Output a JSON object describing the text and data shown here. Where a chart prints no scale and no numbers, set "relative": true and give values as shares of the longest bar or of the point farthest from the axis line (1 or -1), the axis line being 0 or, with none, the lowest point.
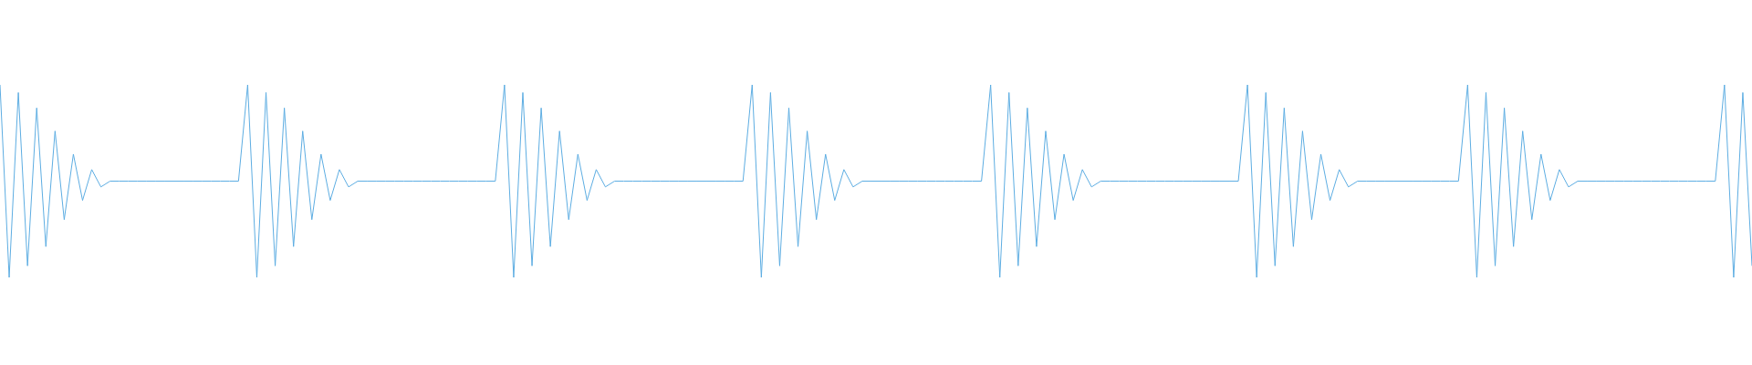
{
  "chart_data": {
    "type": "line",
    "relative": true,
    "legend": false,
    "marker": "none",
    "categories": [
      null,
      null,
      null,
      null,
      null,
      null,
      null,
      null,
      null,
      null,
      null,
      null,
      null,
      null,
      null,
      null,
      null,
      null,
      null,
      null,
      null,
      null,
      null,
      null,
      null,
      null,
      null,
      null,
      null,
      null,
      null,
      null,
      null,
      null,
      null,
      null,
      null,
      null,
      null,
      null,
      null,
      null,
      null,
      null,
      null,
      null,
      null,
      null,
      null,
      null,
      null,
      null,
      null,
      null,
      null,
      null,
      null,
      null,
      null,
      null,
      null,
      null,
      null,
      null,
      null,
      null,
      null,
      null,
      null,
      null,
      null,
      null,
      null,
      null,
      null,
      null,
      null,
      null,
      null,
      null,
      null,
      null,
      null,
      null,
      null,
      null,
      null,
      null,
      null,
      null,
      null,
      null,
      null,
      null,
      null,
      null,
      null,
      null,
      null,
      null,
      null,
      null,
      null,
      null,
      null,
      null,
      null,
      null,
      null,
      null,
      null,
      null,
      null,
      null,
      null,
      null,
      null,
      null,
      null,
      null,
      null,
      null,
      null,
      null,
      null,
      null,
      null,
      null,
      null,
      null,
      null,
      null,
      null,
      null,
      null,
      null,
      null,
      null,
      null,
      null,
      null,
      null,
      null,
      null,
      null,
      null,
      null,
      null,
      null,
      null,
      null,
      null,
      null,
      null,
      null,
      null,
      null,
      null,
      null,
      null,
      null,
      null,
      null,
      null,
      null,
      null,
      null,
      null,
      null,
      null,
      null,
      null,
      null,
      null,
      null,
      null,
      null,
      null,
      null,
      null,
      null,
      null,
      null,
      null,
      null,
      null,
      null,
      null,
      null,
      null,
      null,
      null
    ],
    "series": [
      {
        "color": "#5dade2",
        "values": [
          1,
          0,
          0.96,
          0.06,
          0.88,
          0.16,
          0.76,
          0.3,
          0.64,
          0.4,
          0.56,
          0.47,
          0.5,
          0.5,
          0.5,
          0.5,
          0.5,
          0.5,
          0.5,
          0.5,
          0.5,
          0.5,
          0.5,
          0.5,
          0.5,
          0.5,
          0.5,
          1,
          0,
          0.96,
          0.06,
          0.88,
          0.16,
          0.76,
          0.3,
          0.64,
          0.4,
          0.56,
          0.47,
          0.5,
          0.5,
          0.5,
          0.5,
          0.5,
          0.5,
          0.5,
          0.5,
          0.5,
          0.5,
          0.5,
          0.5,
          0.5,
          0.5,
          0.5,
          0.5,
          1,
          0,
          0.96,
          0.06,
          0.88,
          0.16,
          0.76,
          0.3,
          0.64,
          0.4,
          0.56,
          0.47,
          0.5,
          0.5,
          0.5,
          0.5,
          0.5,
          0.5,
          0.5,
          0.5,
          0.5,
          0.5,
          0.5,
          0.5,
          0.5,
          0.5,
          0.5,
          1,
          0,
          0.96,
          0.06,
          0.88,
          0.16,
          0.76,
          0.3,
          0.64,
          0.4,
          0.56,
          0.47,
          0.5,
          0.5,
          0.5,
          0.5,
          0.5,
          0.5,
          0.5,
          0.5,
          0.5,
          0.5,
          0.5,
          0.5,
          0.5,
          0.5,
          1,
          0,
          0.96,
          0.06,
          0.88,
          0.16,
          0.76,
          0.3,
          0.64,
          0.4,
          0.56,
          0.47,
          0.5,
          0.5,
          0.5,
          0.5,
          0.5,
          0.5,
          0.5,
          0.5,
          0.5,
          0.5,
          0.5,
          0.5,
          0.5,
          0.5,
          0.5,
          0.5,
          1,
          0,
          0.96,
          0.06,
          0.88,
          0.16,
          0.76,
          0.3,
          0.64,
          0.4,
          0.56,
          0.47,
          0.5,
          0.5,
          0.5,
          0.5,
          0.5,
          0.5,
          0.5,
          0.5,
          0.5,
          0.5,
          0.5,
          0.5,
          1,
          0,
          0.96,
          0.06,
          0.88,
          0.16,
          0.76,
          0.3,
          0.64,
          0.4,
          0.56,
          0.47,
          0.5,
          0.5,
          0.5,
          0.5,
          0.5,
          0.5,
          0.5,
          0.5,
          0.5,
          0.5,
          0.5,
          0.5,
          0.5,
          0.5,
          0.5,
          0.5,
          1,
          0,
          0.96,
          0.06
        ]
      }
    ]
  }
}
